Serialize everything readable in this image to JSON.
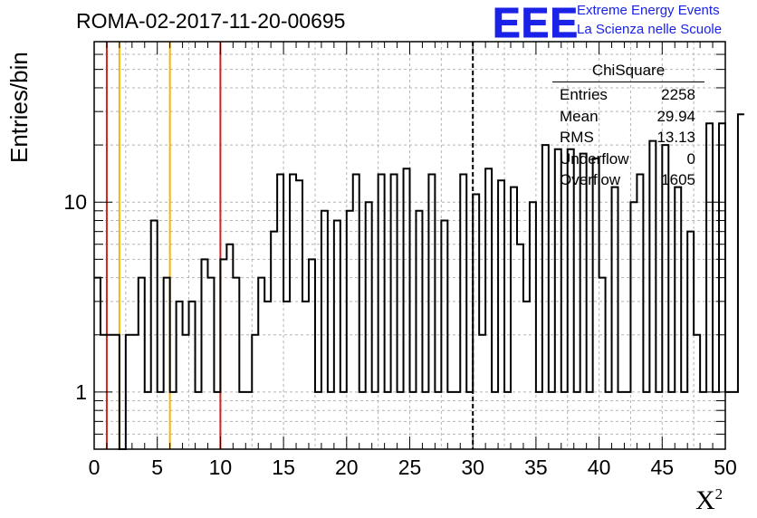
{
  "title": "ROMA-02-2017-11-20-00695",
  "logo": {
    "text": "EEE",
    "line1": "Extreme Energy Events",
    "line2": "La Scienza nelle Scuole",
    "color": "#1a22e8"
  },
  "stats": {
    "title": "ChiSquare",
    "rows": [
      {
        "label": "Entries",
        "value": "2258"
      },
      {
        "label": "Mean",
        "value": "29.94"
      },
      {
        "label": "RMS",
        "value": "13.13"
      },
      {
        "label": "Underflow",
        "value": "0"
      },
      {
        "label": "Overflow",
        "value": "1605"
      }
    ]
  },
  "chart_data": {
    "type": "histogram",
    "ylabel": "Entries/bin",
    "xlabel": "X",
    "xlabel_sup": "2",
    "xlim": [
      0,
      50
    ],
    "ylim": [
      0.5,
      70
    ],
    "yscale": "log",
    "grid": true,
    "x_ticks": [
      "0",
      "5",
      "10",
      "15",
      "20",
      "25",
      "30",
      "35",
      "40",
      "45",
      "50"
    ],
    "y_ticks": [
      "1",
      "10"
    ],
    "bin_width": 0.5,
    "values": [
      4,
      2,
      2,
      2,
      0,
      2,
      2,
      4,
      1,
      8,
      1,
      4,
      1,
      3,
      2,
      3,
      1,
      5,
      4,
      1,
      5,
      6,
      4,
      1,
      1,
      2,
      4,
      3,
      7,
      14,
      3,
      14,
      13,
      3,
      5,
      1,
      9,
      1,
      8,
      1,
      9,
      14,
      1,
      10,
      1,
      14,
      1,
      14,
      1,
      15,
      1,
      9,
      1,
      14,
      1,
      8,
      1,
      1,
      14,
      1,
      11,
      2,
      15,
      1,
      13,
      1,
      12,
      6,
      3,
      10,
      1,
      20,
      1,
      19,
      1,
      19,
      1,
      18,
      1,
      17,
      4,
      1,
      12,
      1,
      1,
      10,
      14,
      1,
      21,
      1,
      20,
      1,
      12,
      1,
      7,
      2,
      1,
      26,
      1,
      26,
      1,
      1,
      29
    ],
    "vlines": [
      {
        "x": 1,
        "color": "#d2231e"
      },
      {
        "x": 2,
        "color": "#f2b705"
      },
      {
        "x": 6,
        "color": "#f2b705"
      },
      {
        "x": 10,
        "color": "#d2231e"
      },
      {
        "x": 30,
        "color": "#000000",
        "style": "dashed"
      }
    ]
  }
}
